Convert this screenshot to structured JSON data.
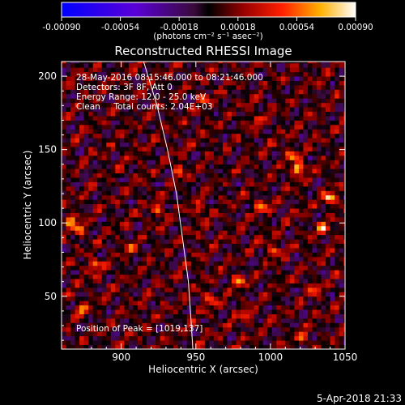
{
  "chart_data": {
    "type": "heatmap",
    "title": "Reconstructed RHESSI Image",
    "xlabel": "Heliocentric X (arcsec)",
    "ylabel": "Heliocentric Y (arcsec)",
    "xlim": [
      860,
      1050
    ],
    "ylim": [
      14,
      210
    ],
    "x_ticks": [
      900,
      950,
      1000,
      1050
    ],
    "y_ticks": [
      50,
      100,
      150,
      200
    ],
    "colorbar": {
      "range": [
        -0.0009,
        0.0009
      ],
      "tick_values": [
        -0.0009,
        -0.00054,
        -0.00018,
        0.00018,
        0.00054,
        0.0009
      ],
      "tick_labels": [
        "-0.00090",
        "-0.00054",
        "-0.00018",
        "0.00018",
        "0.00054",
        "0.00090"
      ],
      "unit_label": "(photons cm⁻² s⁻¹ asec⁻²)"
    },
    "annotations": [
      "28-May-2016 08:15:46.000 to 08:21:46.000",
      "Detectors: 3F 8F, Att 0",
      "Energy Range: 12.0 - 25.0 keV",
      "Clean     Total counts: 2.04E+03"
    ],
    "peak": {
      "label": "Position of Peak = [1019,137]",
      "x": 1019,
      "y": 137
    },
    "limb_line": [
      [
        915,
        210
      ],
      [
        924,
        180
      ],
      [
        931,
        150
      ],
      [
        937,
        120
      ],
      [
        941,
        90
      ],
      [
        945,
        60
      ],
      [
        947,
        30
      ],
      [
        948,
        14
      ]
    ],
    "grid": false,
    "hotspots": [
      {
        "x": 1019,
        "y": 137,
        "v": 0.0009
      },
      {
        "x": 1040,
        "y": 117,
        "v": 0.0008
      },
      {
        "x": 1035,
        "y": 96,
        "v": 0.00062
      },
      {
        "x": 866,
        "y": 102,
        "v": 0.0007
      },
      {
        "x": 882,
        "y": 72,
        "v": 0.00068
      },
      {
        "x": 872,
        "y": 96,
        "v": 0.0006
      },
      {
        "x": 979,
        "y": 61,
        "v": 0.0006
      },
      {
        "x": 994,
        "y": 112,
        "v": 0.00056
      },
      {
        "x": 1003,
        "y": 81,
        "v": 0.00055
      },
      {
        "x": 953,
        "y": 109,
        "v": 0.0005
      },
      {
        "x": 959,
        "y": 48,
        "v": 0.00045
      },
      {
        "x": 1022,
        "y": 22,
        "v": 0.0005
      },
      {
        "x": 939,
        "y": 136,
        "v": 0.00046
      },
      {
        "x": 925,
        "y": 109,
        "v": 0.0005
      },
      {
        "x": 906,
        "y": 83,
        "v": 0.00042
      },
      {
        "x": 990,
        "y": 170,
        "v": 0.0004
      },
      {
        "x": 1014,
        "y": 146,
        "v": 0.0005
      },
      {
        "x": 955,
        "y": 185,
        "v": 0.00035
      },
      {
        "x": 873,
        "y": 41,
        "v": 0.00045
      },
      {
        "x": 984,
        "y": 37,
        "v": 0.00042
      },
      {
        "x": 1030,
        "y": 55,
        "v": 0.00042
      }
    ]
  },
  "timestamp": "5-Apr-2018 21:33"
}
